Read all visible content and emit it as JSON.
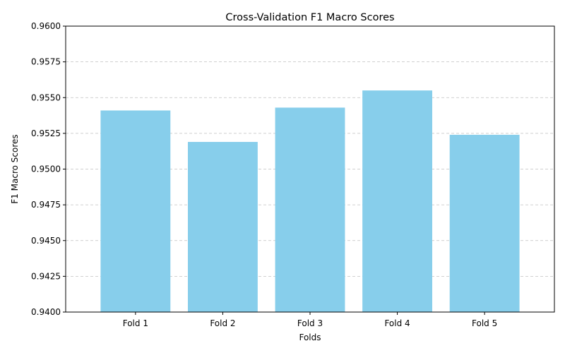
{
  "chart_data": {
    "type": "bar",
    "title": "Cross-Validation F1 Macro Scores",
    "xlabel": "Folds",
    "ylabel": "F1 Macro Scores",
    "categories": [
      "Fold 1",
      "Fold 2",
      "Fold 3",
      "Fold 4",
      "Fold 5"
    ],
    "values": [
      0.9541,
      0.9519,
      0.9543,
      0.9555,
      0.9524
    ],
    "ylim": [
      0.94,
      0.96
    ],
    "yticks": [
      "0.9400",
      "0.9425",
      "0.9450",
      "0.9475",
      "0.9500",
      "0.9525",
      "0.9550",
      "0.9575",
      "0.9600"
    ],
    "grid": "y-dashed",
    "bar_color": "#87ceeb",
    "grid_color": "#c0c0c0"
  }
}
